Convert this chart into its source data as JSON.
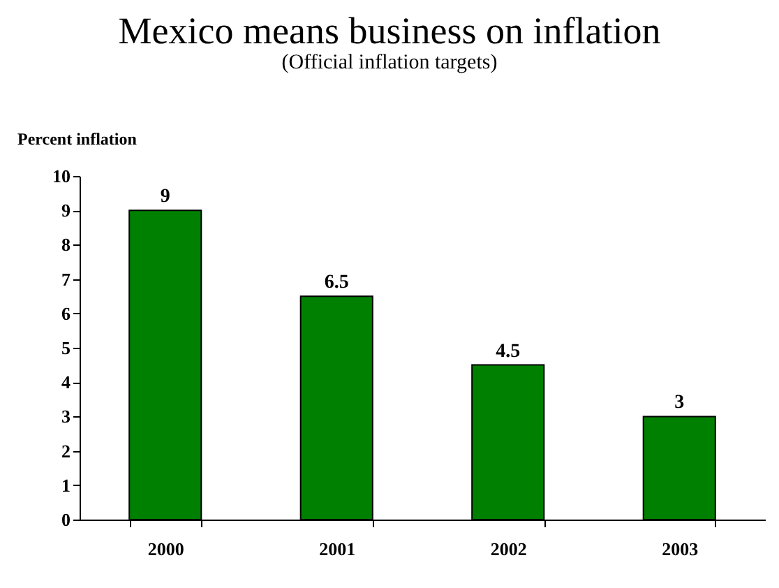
{
  "chart_data": {
    "type": "bar",
    "title": "Mexico means business on inflation",
    "subtitle": "(Official inflation targets)",
    "ylabel": "Percent inflation",
    "categories": [
      "2000",
      "2001",
      "2002",
      "2003"
    ],
    "values": [
      9,
      6.5,
      4.5,
      3
    ],
    "color": "#008000",
    "ylim": [
      0,
      10
    ],
    "yticks": [
      0,
      1,
      2,
      3,
      4,
      5,
      6,
      7,
      8,
      9,
      10
    ],
    "grid": false,
    "data_labels": true
  }
}
